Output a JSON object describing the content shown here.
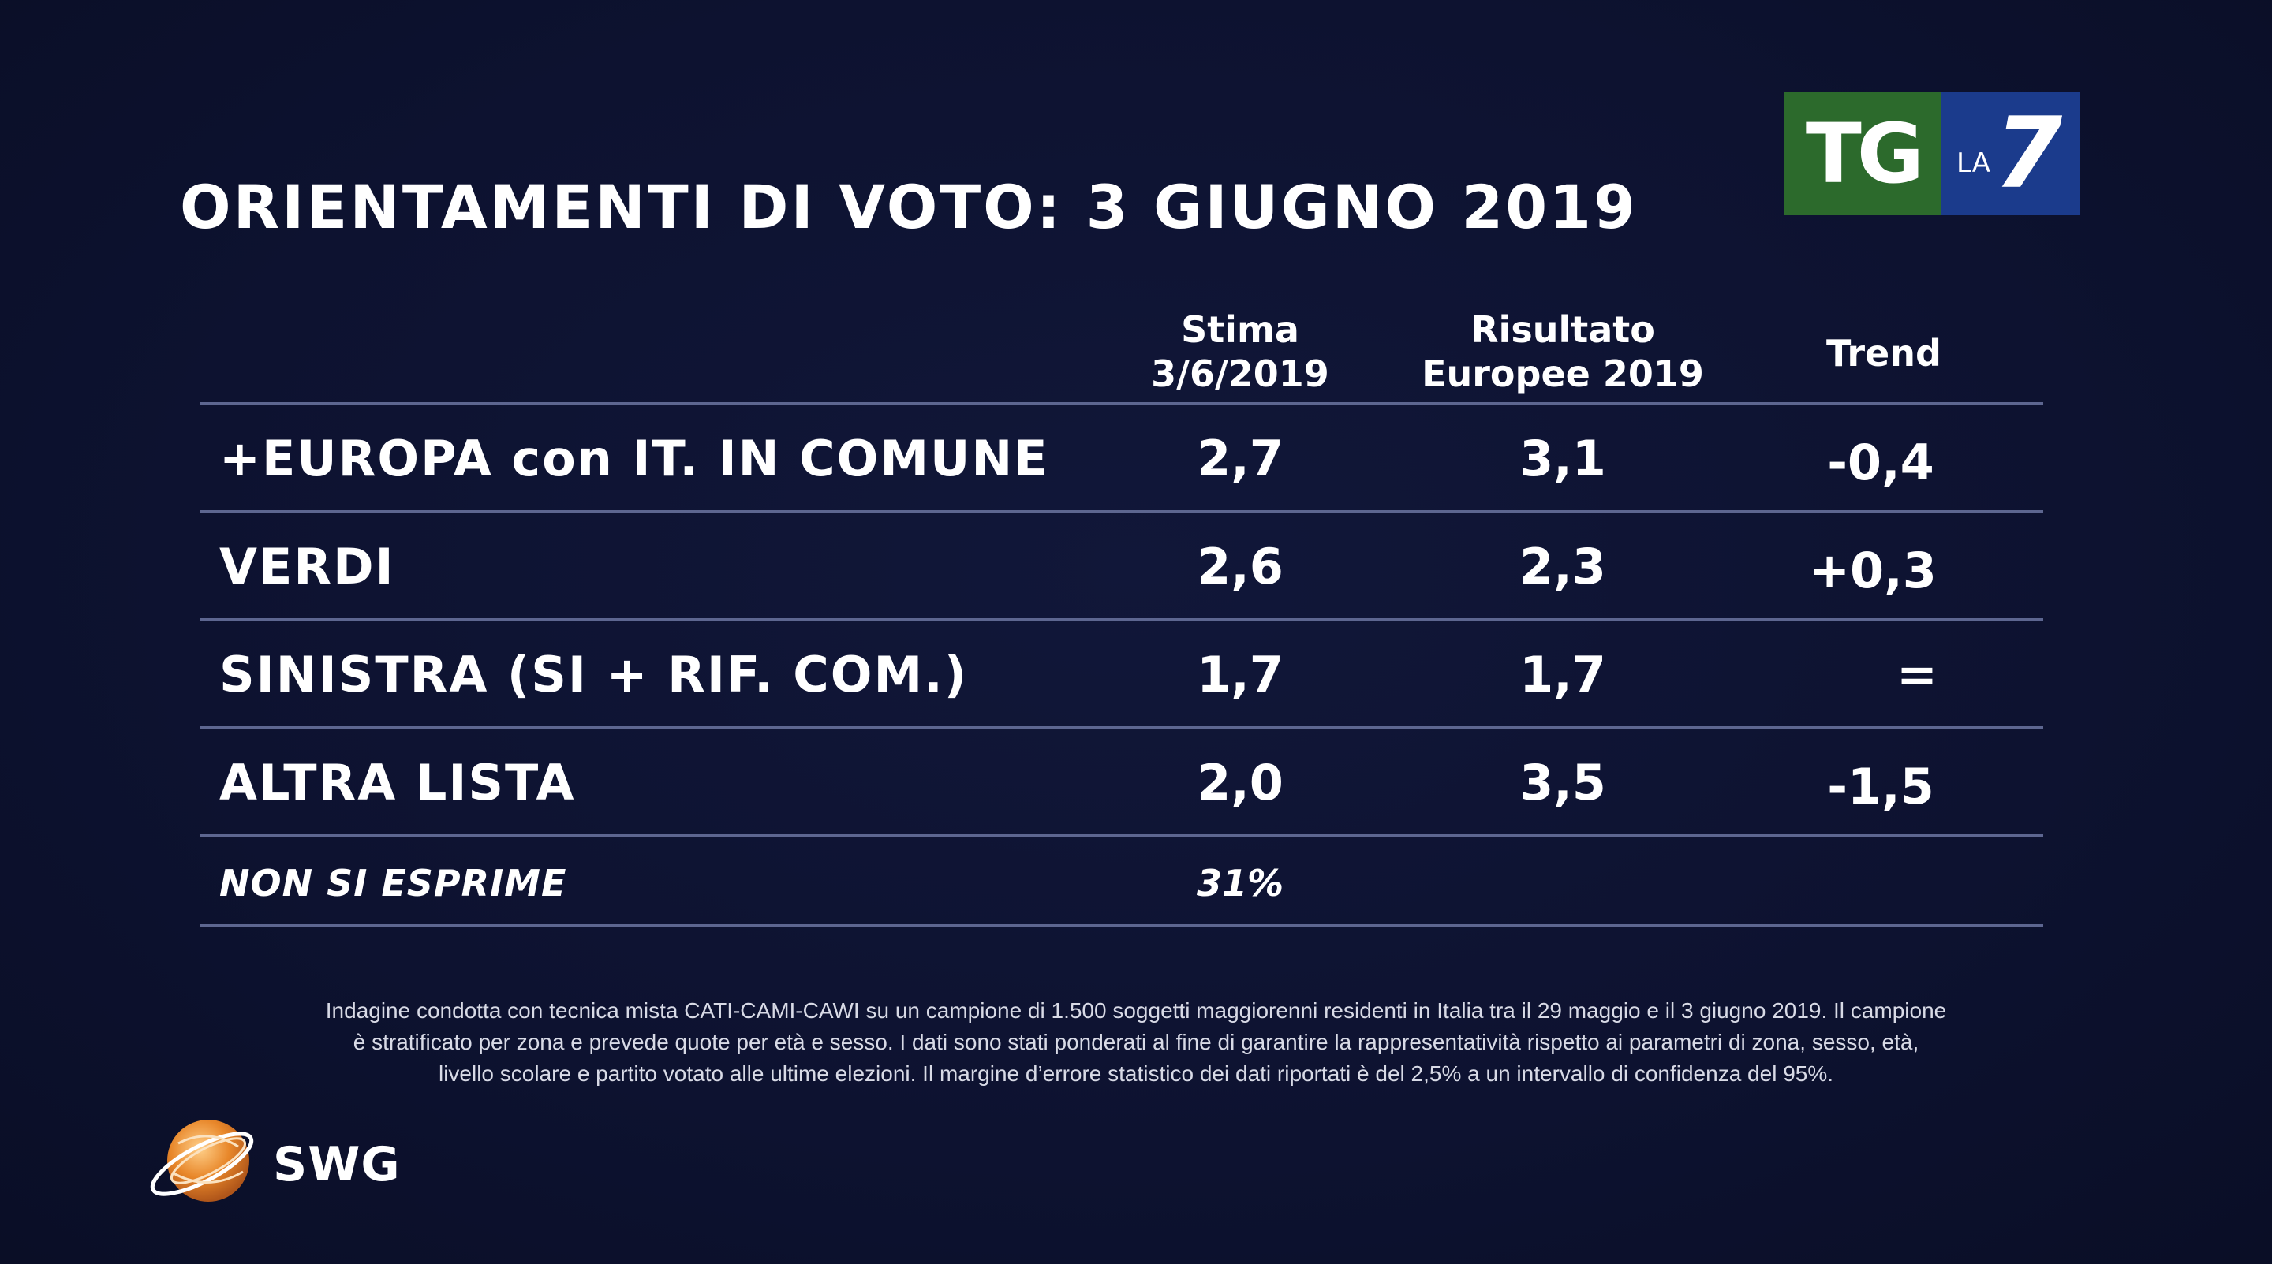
{
  "title": "ORIENTAMENTI DI VOTO: 3 GIUGNO 2019",
  "brand": {
    "tg": "TG",
    "la": "LA",
    "seven": "7",
    "colors": {
      "tg_bg": "#2c6a2c",
      "la7_bg": "#1b3b8c"
    }
  },
  "colors": {
    "background": "#0d1230",
    "text": "#ffffff",
    "rule": "#5d6690",
    "swg_orange": "#e8872a"
  },
  "chart_data": {
    "type": "table",
    "title": "ORIENTAMENTI DI VOTO: 3 GIUGNO 2019",
    "columns": [
      {
        "line1": "Stima",
        "line2": "3/6/2019"
      },
      {
        "line1": "Risultato",
        "line2": "Europee 2019"
      },
      {
        "line1": "Trend",
        "line2": ""
      }
    ],
    "rows": [
      {
        "label": "+EUROPA con IT. IN COMUNE",
        "stima": "2,7",
        "risultato": "3,1",
        "trend": "-0,4"
      },
      {
        "label": "VERDI",
        "stima": "2,6",
        "risultato": "2,3",
        "trend": "+0,3"
      },
      {
        "label": "SINISTRA (SI + RIF. COM.)",
        "stima": "1,7",
        "risultato": "1,7",
        "trend": "="
      },
      {
        "label": "ALTRA LISTA",
        "stima": "2,0",
        "risultato": "3,5",
        "trend": "-1,5"
      }
    ],
    "note_row": {
      "label": "NON SI ESPRIME",
      "stima": "31%"
    }
  },
  "footnote": {
    "line1": "Indagine condotta con tecnica mista CATI-CAMI-CAWI su un campione di 1.500 soggetti maggiorenni residenti in Italia tra il 29 maggio e il 3 giugno 2019. Il campione",
    "line2": "è stratificato per zona e prevede quote per età e sesso. I dati sono stati ponderati al fine di garantire la rappresentatività rispetto ai parametri di zona, sesso, età,",
    "line3": "livello scolare e partito votato alle ultime elezioni. Il margine d’errore statistico dei dati riportati è del 2,5% a un intervallo di confidenza del 95%."
  },
  "swg": {
    "name": "SWG"
  }
}
